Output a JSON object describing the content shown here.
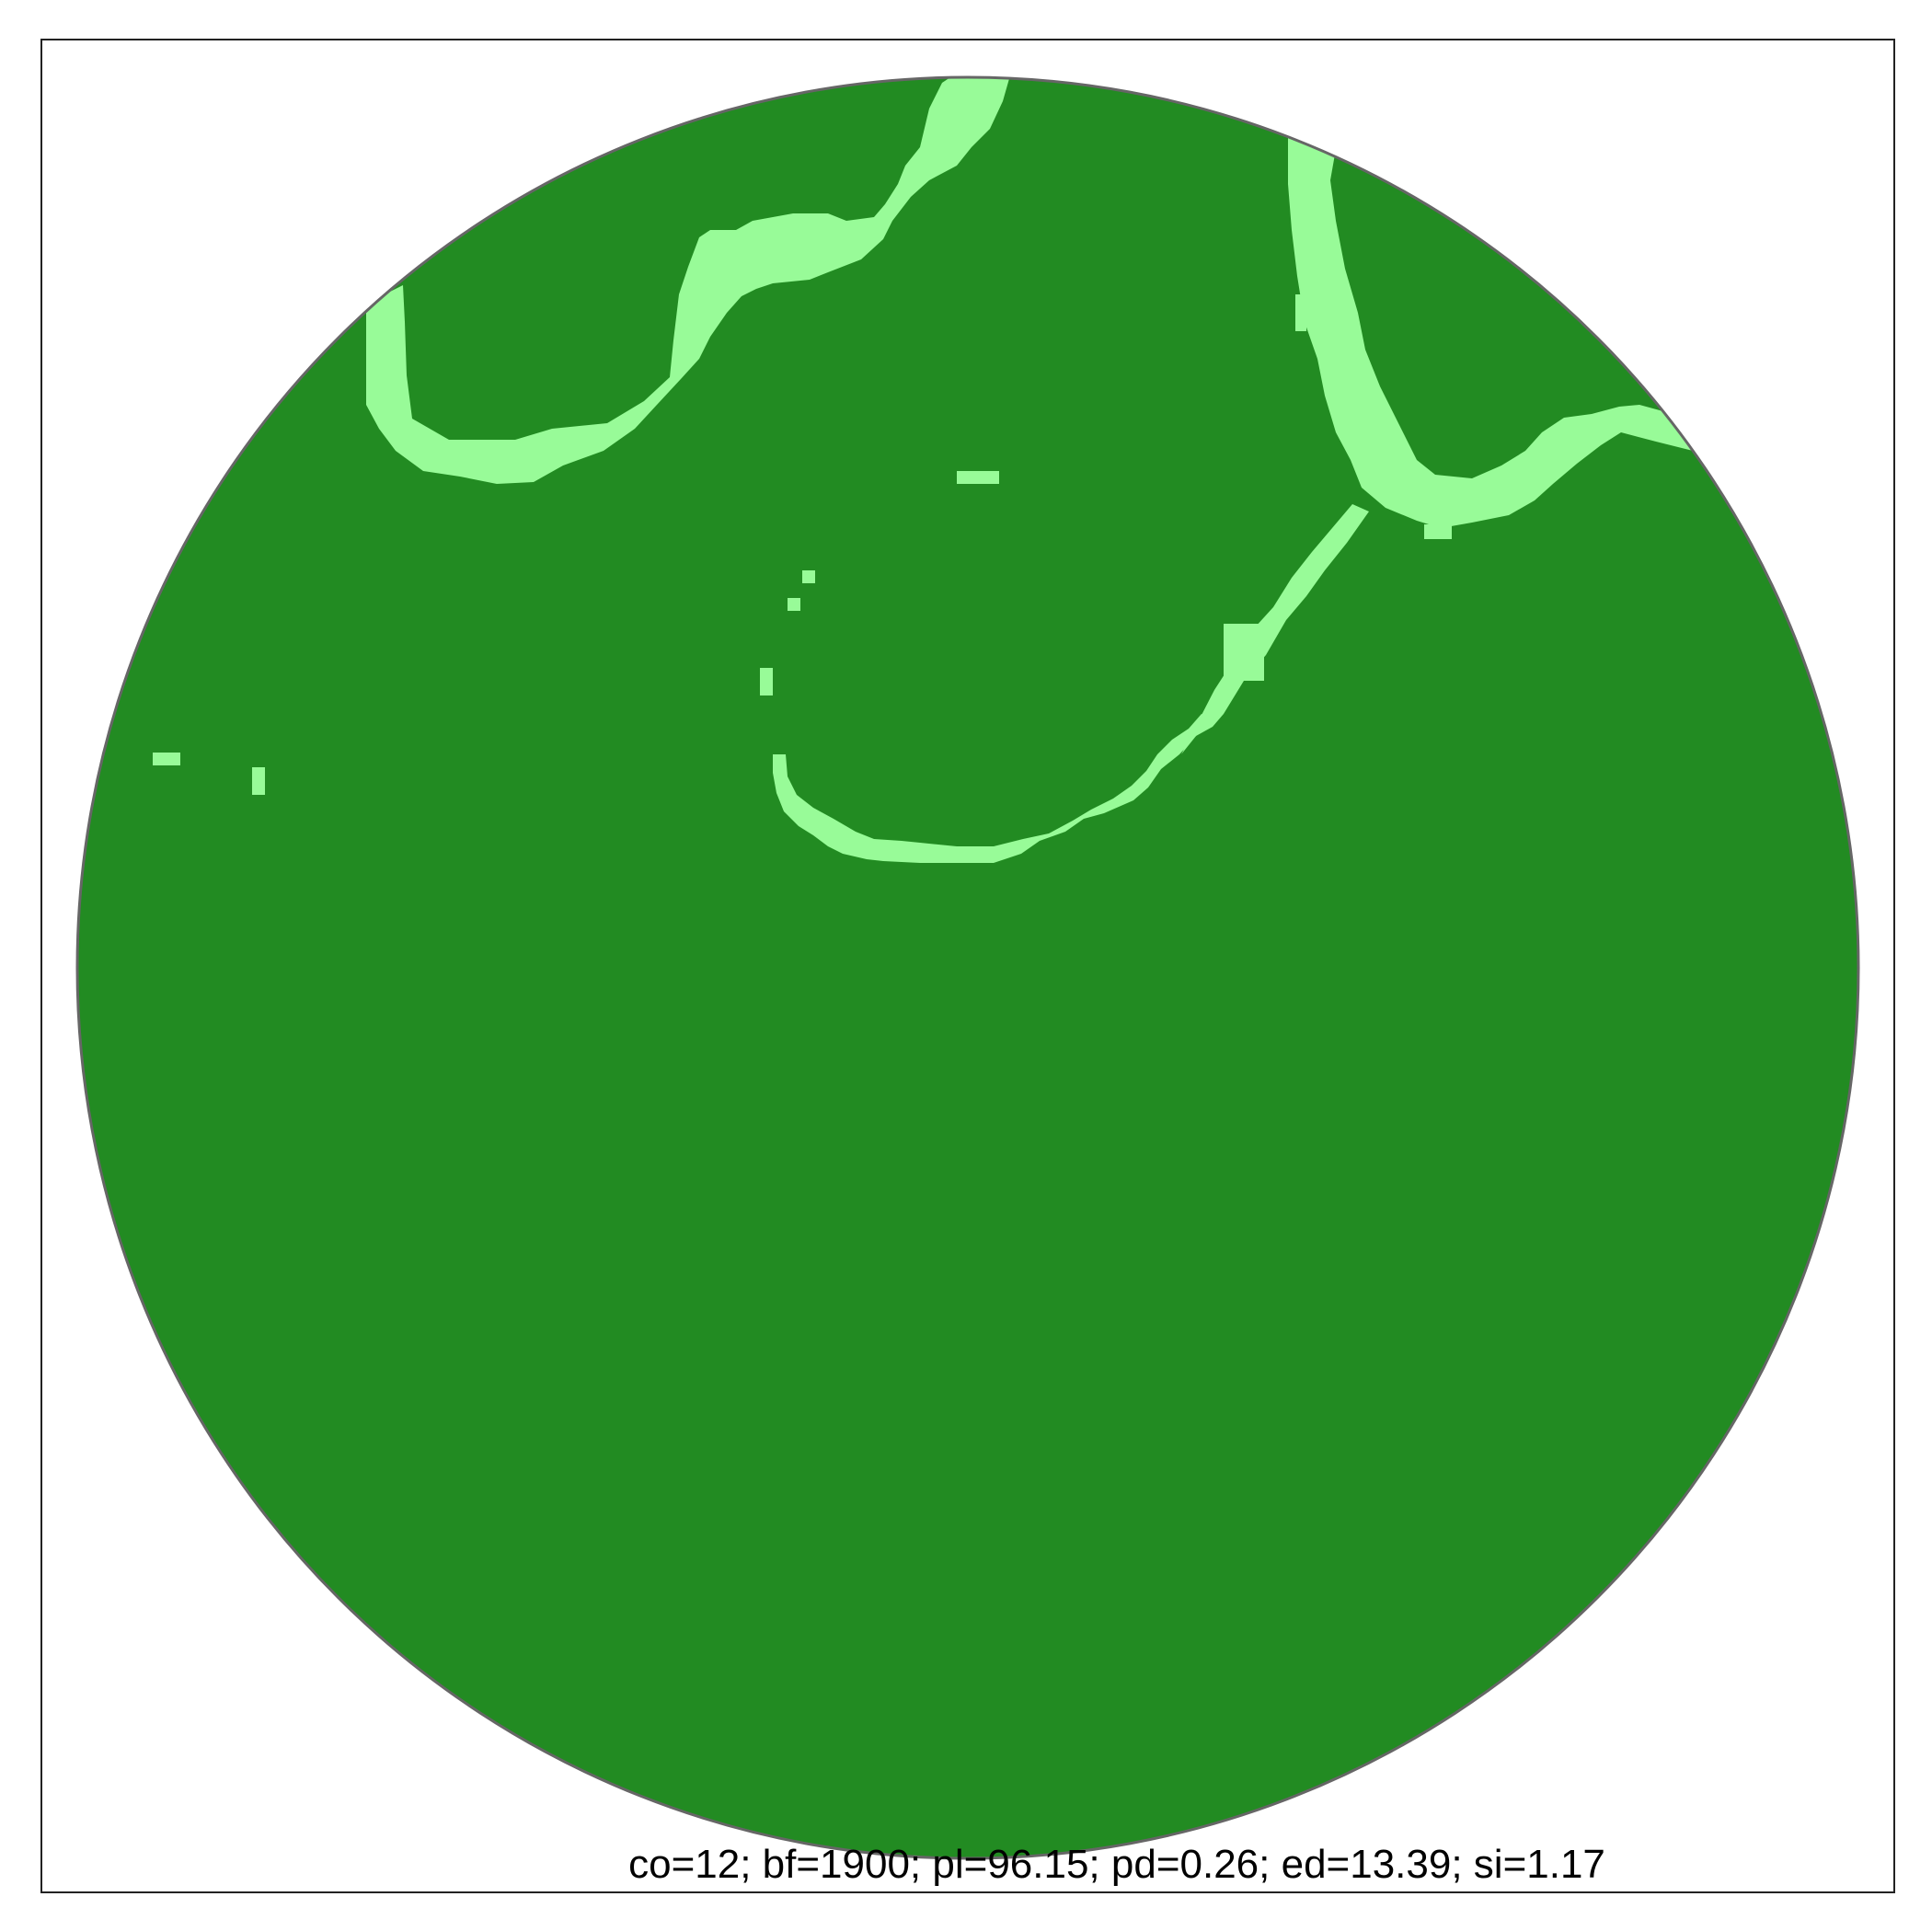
{
  "stats_label": "co=12; bf=1900; pl=96.15; pd=0.26; ed=13.39; si=1.17",
  "colors": {
    "forest": "#228b22",
    "nonforest": "#98fb98",
    "boundary": "#666666",
    "frame": "#222222",
    "background": "#ffffff"
  },
  "legend": []
}
